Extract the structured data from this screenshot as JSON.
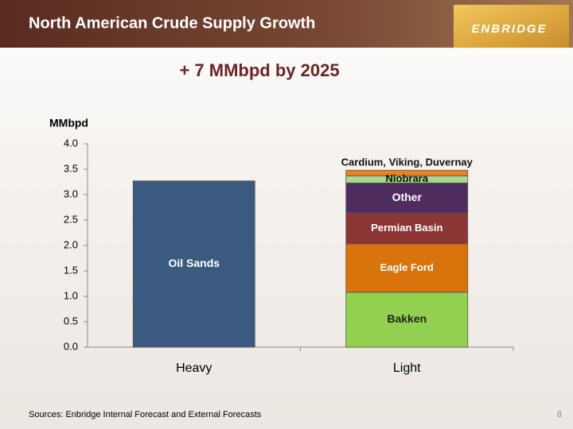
{
  "header": {
    "title": "North American Crude Supply Growth",
    "logo": "ENBRIDGE"
  },
  "chart_data": {
    "type": "stacked_bar",
    "title": "+ 7 MMbpd by 2025",
    "y_label": "MMbpd",
    "categories": [
      "Heavy",
      "Light"
    ],
    "series": [
      {
        "name": "Oil Sands",
        "color": "#3b5a7f",
        "values": [
          3.27,
          null
        ]
      },
      {
        "name": "Bakken",
        "color": "#92d050",
        "values": [
          null,
          1.08
        ]
      },
      {
        "name": "Eagle Ford",
        "color": "#d9740c",
        "values": [
          null,
          0.95
        ]
      },
      {
        "name": "Permian Basin",
        "color": "#8c3535",
        "values": [
          null,
          0.61
        ]
      },
      {
        "name": "Other",
        "color": "#4e2d5e",
        "values": [
          null,
          0.59
        ]
      },
      {
        "name": "Niobrara",
        "color": "#a9d98c",
        "values": [
          null,
          0.14
        ]
      },
      {
        "name": "Cardium, Viking, Duvernay",
        "color": "#e8821e",
        "values": [
          null,
          0.11
        ]
      }
    ],
    "ylim": [
      0,
      4
    ],
    "yticks": [
      {
        "value": 0,
        "label": "0.0"
      },
      0.5,
      {
        "value": 1,
        "label": "1.0"
      },
      1.5,
      {
        "value": 2,
        "label": "2.0"
      },
      2.5,
      {
        "value": 3,
        "label": "3.0"
      },
      3.5,
      {
        "value": 4,
        "label": "4.0"
      }
    ]
  },
  "footer": {
    "source": "Sources: Enbridge Internal Forecast and External Forecasts",
    "page": "8"
  }
}
